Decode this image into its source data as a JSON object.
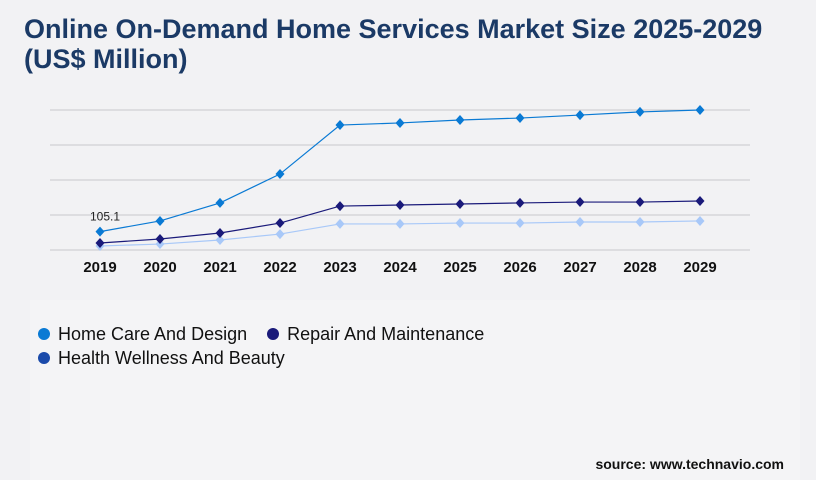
{
  "chart_data": {
    "type": "line",
    "title": "Online On-Demand Home Services Market Size 2025-2029 (US$ Million)",
    "x": [
      "2019",
      "2020",
      "2021",
      "2022",
      "2023",
      "2024",
      "2025",
      "2026",
      "2027",
      "2028",
      "2029"
    ],
    "ylim": [
      0,
      800
    ],
    "grid": true,
    "legend_placement": "bottom-left",
    "series": [
      {
        "name": "Home Care And Design",
        "color": "#0a7ad4",
        "legend_color": "#0a7ad4",
        "values": [
          105.1,
          166,
          269,
          434,
          714,
          726,
          743,
          754,
          771,
          789,
          800
        ]
      },
      {
        "name": "Repair And Maintenance",
        "color": "#1a1a7a",
        "legend_color": "#1a1a7a",
        "values": [
          40,
          63,
          97,
          154,
          251,
          257,
          263,
          269,
          274,
          274,
          280
        ]
      },
      {
        "name": "Health Wellness And Beauty",
        "color": "#a8c8f8",
        "legend_color": "#1a4aaa",
        "values": [
          23,
          34,
          57,
          91,
          149,
          149,
          154,
          154,
          160,
          160,
          166
        ]
      }
    ],
    "annotations": [
      {
        "x": "2019",
        "series": "Home Care And Design",
        "text": "105.1"
      }
    ]
  },
  "source": "source: www.technavio.com"
}
